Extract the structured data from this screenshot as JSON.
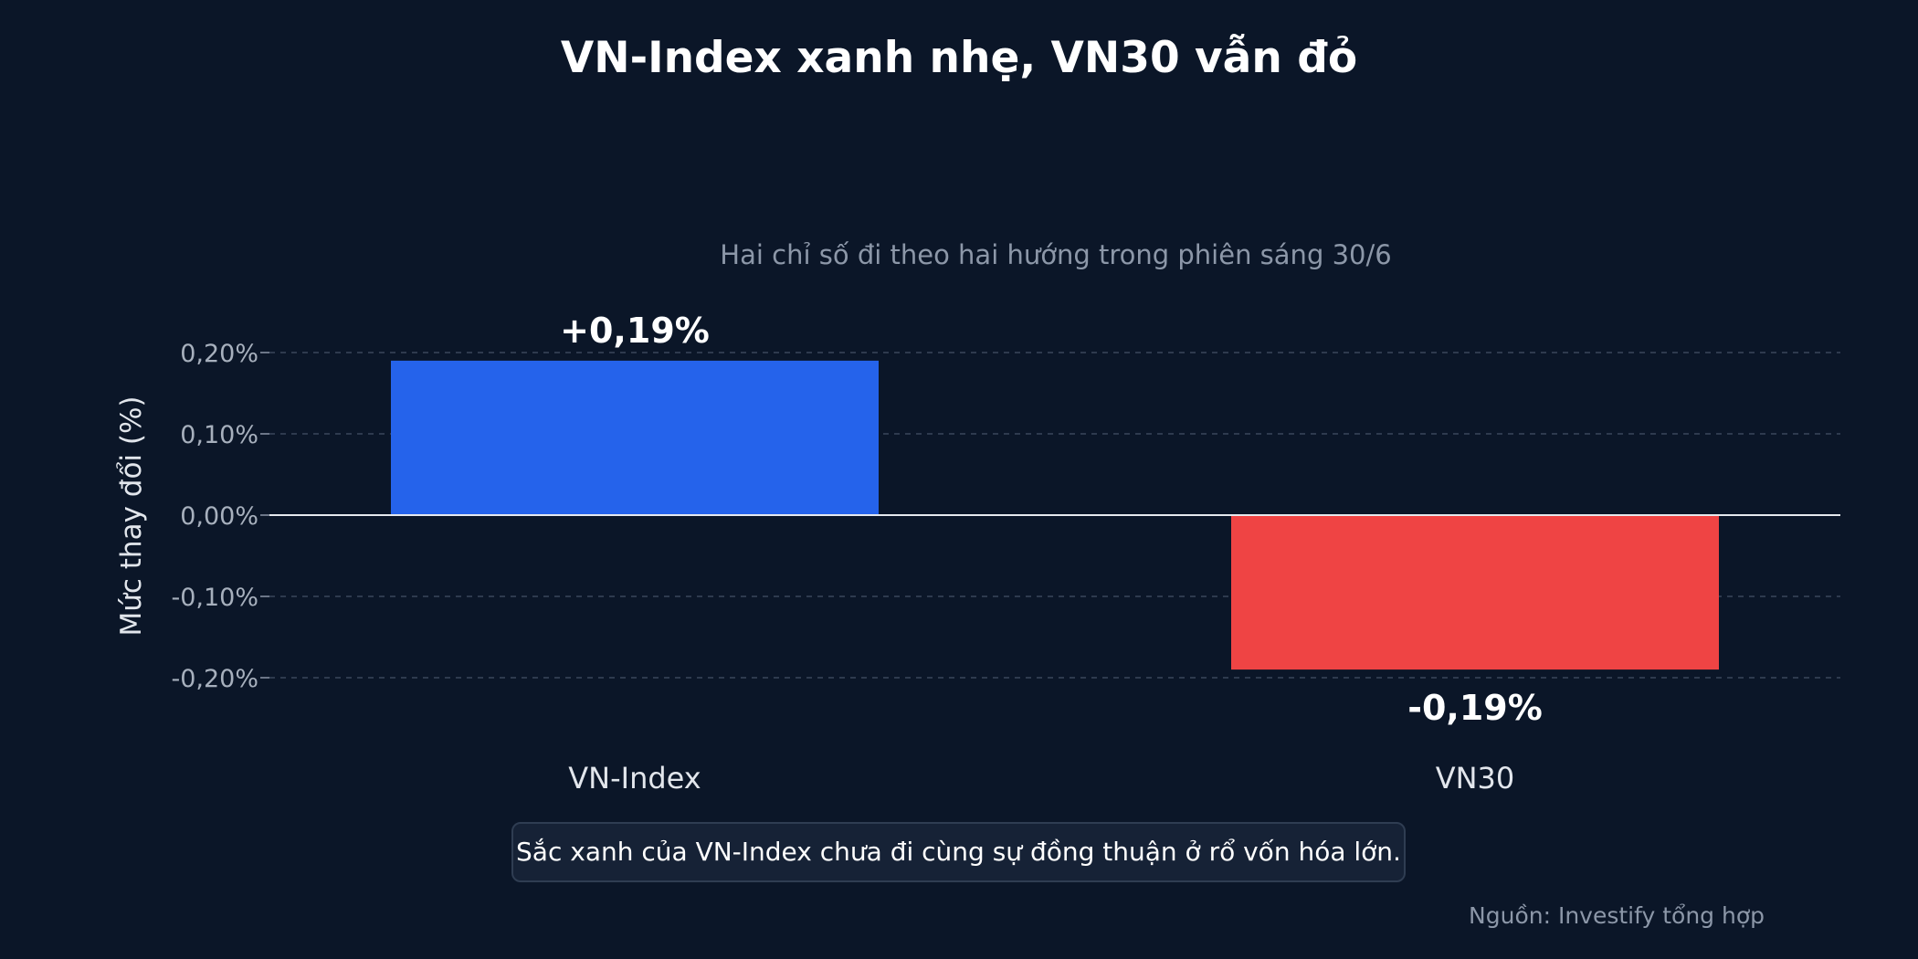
{
  "chart_data": {
    "type": "bar",
    "title": "VN-Index xanh nhẹ, VN30 vẫn đỏ",
    "subtitle": "Hai chỉ số đi theo hai hướng trong phiên sáng 30/6",
    "ylabel": "Mức thay đổi (%)",
    "xlabel": "",
    "categories": [
      "VN-Index",
      "VN30"
    ],
    "values": [
      0.19,
      -0.19
    ],
    "value_labels": [
      "+0,19%",
      "-0,19%"
    ],
    "colors": [
      "#2563eb",
      "#ef4444"
    ],
    "ylim": [
      -0.2,
      0.2
    ],
    "yticks": [
      0.2,
      0.1,
      0.0,
      -0.1,
      -0.2
    ],
    "ytick_labels": [
      "0,20%",
      "0,10%",
      "0,00%",
      "-0,10%",
      "-0,20%"
    ],
    "grid": "horizontal-dashed",
    "legend": "none"
  },
  "note": "Sắc xanh của VN-Index chưa đi cùng sự đồng thuận ở rổ vốn hóa lớn.",
  "source": "Nguồn: Investify tổng hợp"
}
